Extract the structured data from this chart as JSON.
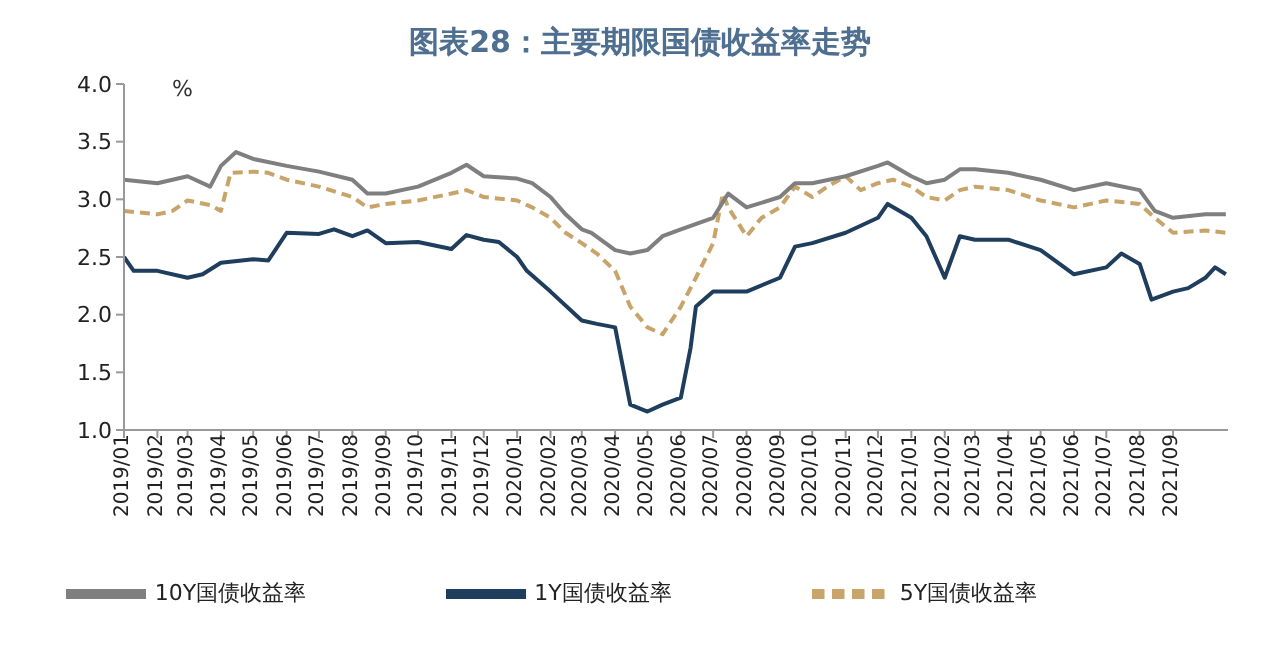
{
  "chart_data": {
    "type": "line",
    "title": "图表28：主要期限国债收益率走势",
    "ylabel": "%",
    "legend": "bottom",
    "xlim": [
      "2019-01-01",
      "2021-10-22"
    ],
    "xticks": [
      {
        "value": "2019-01",
        "label": "2019/01"
      },
      {
        "value": "2019-02",
        "label": "2019/02"
      },
      {
        "value": "2019-03",
        "label": "2019/03"
      },
      {
        "value": "2019-04",
        "label": "2019/04"
      },
      {
        "value": "2019-05",
        "label": "2019/05"
      },
      {
        "value": "2019-06",
        "label": "2019/06"
      },
      {
        "value": "2019-07",
        "label": "2019/07"
      },
      {
        "value": "2019-08",
        "label": "2019/08"
      },
      {
        "value": "2019-09",
        "label": "2019/09"
      },
      {
        "value": "2019-10",
        "label": "2019/10"
      },
      {
        "value": "2019-11",
        "label": "2019/11"
      },
      {
        "value": "2019-12",
        "label": "2019/12"
      },
      {
        "value": "2020-01",
        "label": "2020/01"
      },
      {
        "value": "2020-02",
        "label": "2020/02"
      },
      {
        "value": "2020-03",
        "label": "2020/03"
      },
      {
        "value": "2020-04",
        "label": "2020/04"
      },
      {
        "value": "2020-05",
        "label": "2020/05"
      },
      {
        "value": "2020-06",
        "label": "2020/06"
      },
      {
        "value": "2020-07",
        "label": "2020/07"
      },
      {
        "value": "2020-08",
        "label": "2020/08"
      },
      {
        "value": "2020-09",
        "label": "2020/09"
      },
      {
        "value": "2020-10",
        "label": "2020/10"
      },
      {
        "value": "2020-11",
        "label": "2020/11"
      },
      {
        "value": "2020-12",
        "label": "2020/12"
      },
      {
        "value": "2021-01",
        "label": "2021/01"
      },
      {
        "value": "2021-02",
        "label": "2021/02"
      },
      {
        "value": "2021-03",
        "label": "2021/03"
      },
      {
        "value": "2021-04",
        "label": "2021/04"
      },
      {
        "value": "2021-05",
        "label": "2021/05"
      },
      {
        "value": "2021-06",
        "label": "2021/06"
      },
      {
        "value": "2021-07",
        "label": "2021/07"
      },
      {
        "value": "2021-08",
        "label": "2021/08"
      },
      {
        "value": "2021-09",
        "label": "2021/09"
      }
    ],
    "ylim": [
      1,
      4
    ],
    "yticks": [
      {
        "value": 1,
        "label": "1.0"
      },
      {
        "value": 1.5,
        "label": "1.5"
      },
      {
        "value": 2,
        "label": "2.0"
      },
      {
        "value": 2.5,
        "label": "2.5"
      },
      {
        "value": 3,
        "label": "3.0"
      },
      {
        "value": 3.5,
        "label": "3.5"
      },
      {
        "value": 4,
        "label": "4.0"
      }
    ],
    "series": [
      {
        "name": "1Y国债收益率",
        "color": "#1f3d5c",
        "line_style": "solid",
        "x": [
          "2019-01-01",
          "2019-01-10",
          "2019-02-01",
          "2019-03-01",
          "2019-03-15",
          "2019-04-01",
          "2019-05-01",
          "2019-05-15",
          "2019-06-01",
          "2019-07-01",
          "2019-07-15",
          "2019-08-01",
          "2019-08-15",
          "2019-09-01",
          "2019-10-01",
          "2019-11-01",
          "2019-11-15",
          "2019-12-01",
          "2019-12-15",
          "2020-01-01",
          "2020-01-10",
          "2020-02-01",
          "2020-03-01",
          "2020-03-15",
          "2020-04-01",
          "2020-04-15",
          "2020-05-01",
          "2020-05-15",
          "2020-06-01",
          "2020-06-10",
          "2020-06-15",
          "2020-07-01",
          "2020-08-01",
          "2020-09-01",
          "2020-09-15",
          "2020-10-01",
          "2020-11-01",
          "2020-12-01",
          "2020-12-10",
          "2021-01-01",
          "2021-01-15",
          "2021-02-01",
          "2021-02-15",
          "2021-03-01",
          "2021-04-01",
          "2021-05-01",
          "2021-06-01",
          "2021-07-01",
          "2021-07-15",
          "2021-08-01",
          "2021-08-12",
          "2021-09-01",
          "2021-09-15",
          "2021-10-01",
          "2021-10-10",
          "2021-10-20"
        ],
        "values": [
          2.5,
          2.38,
          2.38,
          2.32,
          2.35,
          2.45,
          2.48,
          2.47,
          2.71,
          2.7,
          2.74,
          2.68,
          2.73,
          2.62,
          2.63,
          2.57,
          2.69,
          2.65,
          2.63,
          2.5,
          2.38,
          2.2,
          1.95,
          1.92,
          1.89,
          1.22,
          1.16,
          1.22,
          1.28,
          1.71,
          2.07,
          2.2,
          2.2,
          2.32,
          2.59,
          2.62,
          2.71,
          2.84,
          2.96,
          2.84,
          2.68,
          2.32,
          2.68,
          2.65,
          2.65,
          2.56,
          2.35,
          2.41,
          2.53,
          2.44,
          2.13,
          2.2,
          2.23,
          2.32,
          2.41,
          2.35
        ]
      },
      {
        "name": "5Y国债收益率",
        "color": "#c8a46a",
        "line_style": "dashed",
        "x": [
          "2019-01-01",
          "2019-02-01",
          "2019-02-15",
          "2019-03-01",
          "2019-03-22",
          "2019-04-01",
          "2019-04-10",
          "2019-05-01",
          "2019-05-15",
          "2019-06-01",
          "2019-07-01",
          "2019-08-01",
          "2019-08-15",
          "2019-09-01",
          "2019-10-01",
          "2019-11-01",
          "2019-11-15",
          "2019-12-01",
          "2020-01-01",
          "2020-01-15",
          "2020-02-01",
          "2020-02-15",
          "2020-03-01",
          "2020-03-15",
          "2020-04-01",
          "2020-04-15",
          "2020-05-01",
          "2020-05-15",
          "2020-06-01",
          "2020-06-15",
          "2020-07-01",
          "2020-07-10",
          "2020-07-15",
          "2020-08-01",
          "2020-08-15",
          "2020-09-01",
          "2020-09-15",
          "2020-10-01",
          "2020-10-15",
          "2020-11-01",
          "2020-11-15",
          "2020-12-01",
          "2020-12-15",
          "2021-01-01",
          "2021-01-15",
          "2021-02-01",
          "2021-02-15",
          "2021-03-01",
          "2021-04-01",
          "2021-05-01",
          "2021-06-01",
          "2021-07-01",
          "2021-08-01",
          "2021-08-15",
          "2021-09-01",
          "2021-10-01",
          "2021-10-20"
        ],
        "values": [
          2.9,
          2.87,
          2.9,
          2.99,
          2.95,
          2.9,
          3.23,
          3.24,
          3.23,
          3.17,
          3.11,
          3.02,
          2.93,
          2.96,
          2.99,
          3.05,
          3.08,
          3.02,
          2.99,
          2.93,
          2.84,
          2.71,
          2.62,
          2.53,
          2.38,
          2.07,
          1.89,
          1.83,
          2.07,
          2.32,
          2.62,
          3.05,
          2.93,
          2.68,
          2.84,
          2.93,
          3.11,
          3.02,
          3.11,
          3.2,
          3.08,
          3.14,
          3.17,
          3.11,
          3.02,
          2.99,
          3.08,
          3.11,
          3.08,
          2.99,
          2.93,
          2.99,
          2.96,
          2.84,
          2.71,
          2.73,
          2.71
        ]
      },
      {
        "name": "10Y国债收益率",
        "color": "#7f7f7f",
        "line_style": "solid",
        "x": [
          "2019-01-01",
          "2019-02-01",
          "2019-03-01",
          "2019-03-22",
          "2019-04-01",
          "2019-04-15",
          "2019-05-01",
          "2019-06-01",
          "2019-07-01",
          "2019-08-01",
          "2019-08-15",
          "2019-09-01",
          "2019-10-01",
          "2019-11-01",
          "2019-11-15",
          "2019-12-01",
          "2020-01-01",
          "2020-01-15",
          "2020-02-01",
          "2020-02-15",
          "2020-03-01",
          "2020-03-10",
          "2020-04-01",
          "2020-04-15",
          "2020-05-01",
          "2020-05-15",
          "2020-06-01",
          "2020-07-01",
          "2020-07-15",
          "2020-08-01",
          "2020-09-01",
          "2020-09-15",
          "2020-10-01",
          "2020-11-01",
          "2020-12-01",
          "2020-12-10",
          "2021-01-01",
          "2021-01-15",
          "2021-02-01",
          "2021-02-15",
          "2021-03-01",
          "2021-04-01",
          "2021-05-01",
          "2021-06-01",
          "2021-07-01",
          "2021-08-01",
          "2021-08-15",
          "2021-09-01",
          "2021-10-01",
          "2021-10-20"
        ],
        "values": [
          3.17,
          3.14,
          3.2,
          3.11,
          3.29,
          3.41,
          3.35,
          3.29,
          3.24,
          3.17,
          3.05,
          3.05,
          3.11,
          3.23,
          3.3,
          3.2,
          3.18,
          3.14,
          3.02,
          2.87,
          2.74,
          2.71,
          2.56,
          2.53,
          2.56,
          2.68,
          2.74,
          2.84,
          3.05,
          2.93,
          3.02,
          3.14,
          3.14,
          3.2,
          3.29,
          3.32,
          3.2,
          3.14,
          3.17,
          3.26,
          3.26,
          3.23,
          3.17,
          3.08,
          3.14,
          3.08,
          2.9,
          2.84,
          2.87,
          2.87
        ]
      }
    ]
  }
}
